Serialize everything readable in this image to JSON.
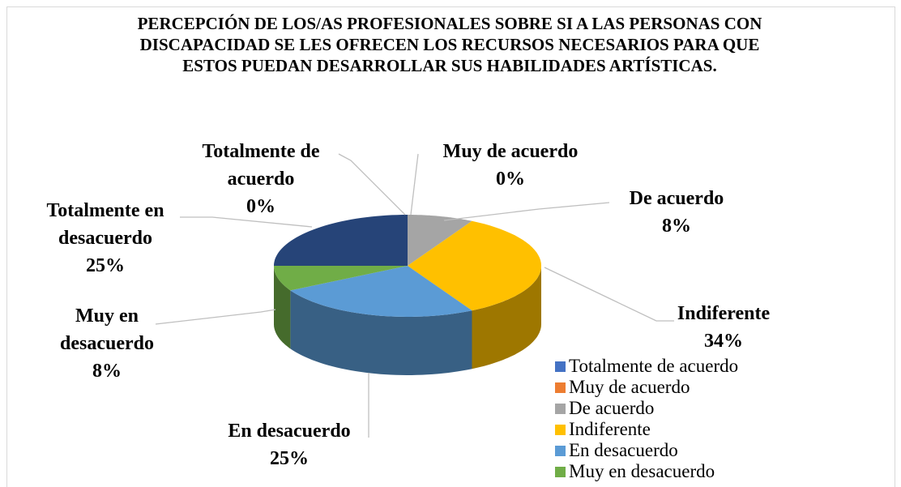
{
  "chart_data": {
    "type": "pie3d",
    "title": "PERCEPCIÓN DE LOS/AS PROFESIONALES SOBRE SI A LAS PERSONAS CON DISCAPACIDAD SE LES OFRECEN LOS RECURSOS NECESARIOS PARA QUE ESTOS PUEDAN DESARROLLAR SUS HABILIDADES ARTÍSTICAS.",
    "categories": [
      "Totalmente de acuerdo",
      "Muy de acuerdo",
      "De acuerdo",
      "Indiferente",
      "En desacuerdo",
      "Muy en desacuerdo",
      "Totalmente en desacuerdo"
    ],
    "values": [
      0,
      0,
      8,
      34,
      25,
      8,
      25
    ],
    "value_labels": [
      "0%",
      "0%",
      "8%",
      "34%",
      "25%",
      "8%",
      "25%"
    ],
    "colors": [
      "#4472c4",
      "#ed7d31",
      "#a5a5a5",
      "#ffc000",
      "#5b9bd5",
      "#70ad47",
      "#264478"
    ],
    "legend": "bottom-right"
  }
}
